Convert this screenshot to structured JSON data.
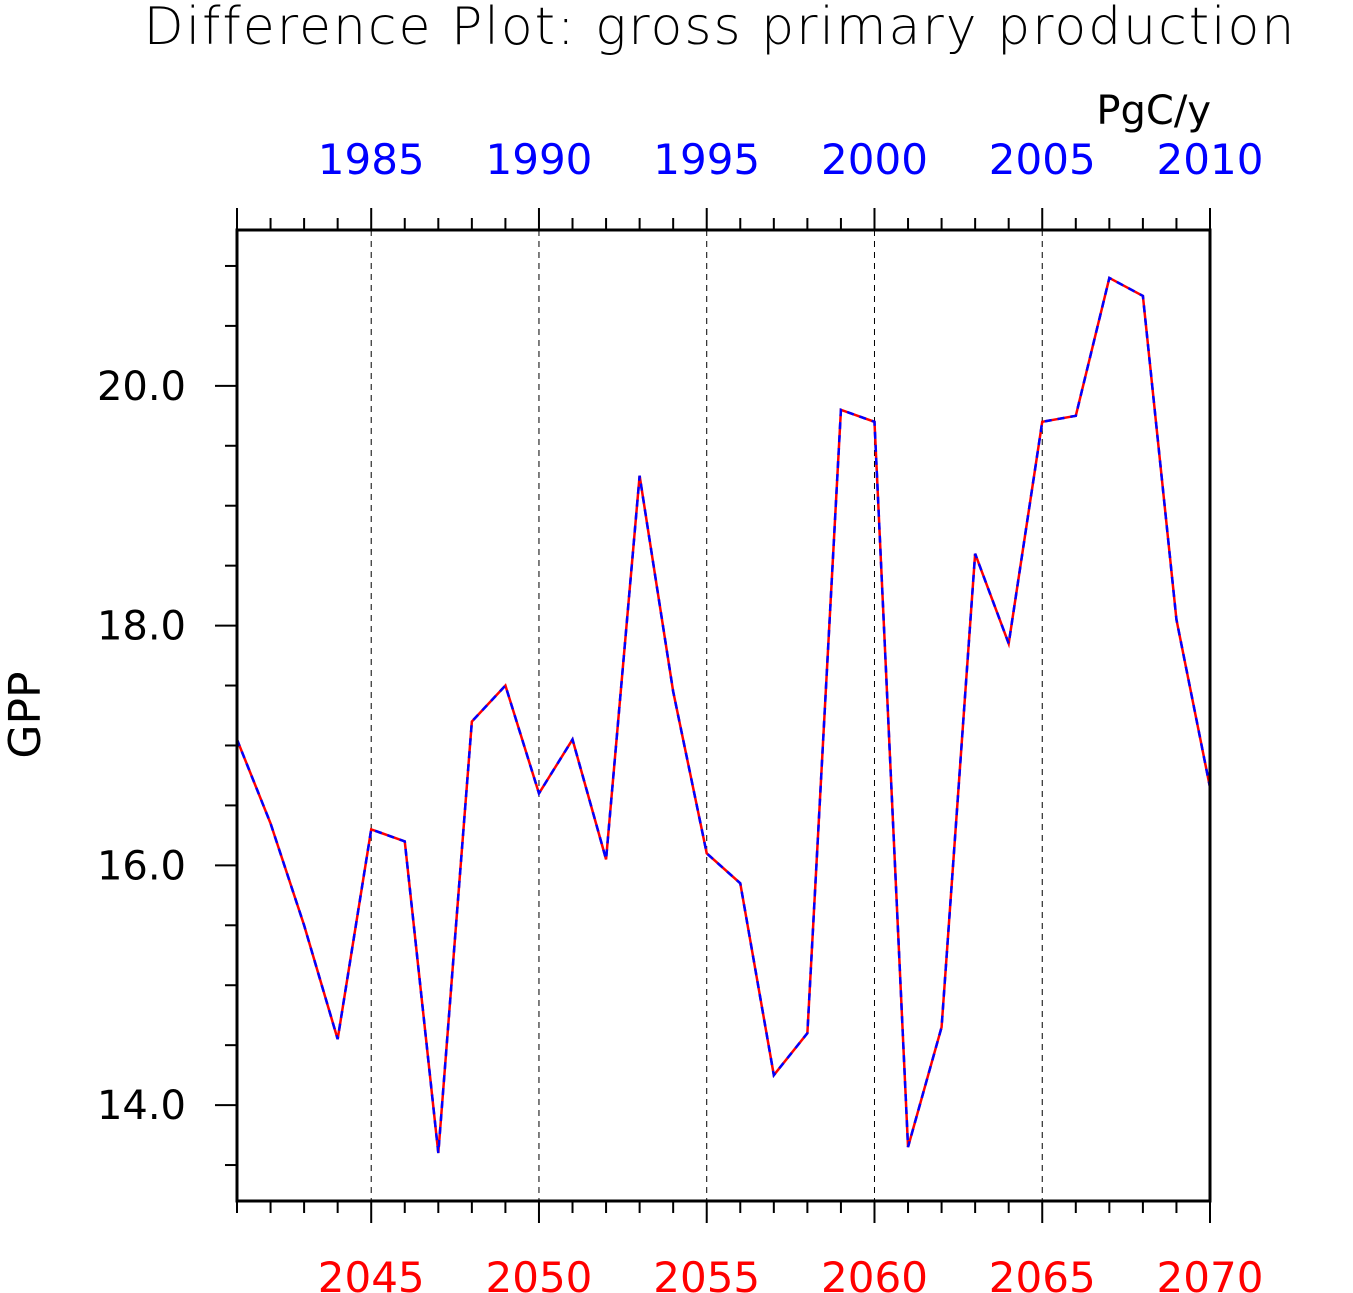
{
  "chart_data": {
    "type": "line",
    "title": "Difference Plot: gross primary production",
    "units": "PgC/y",
    "ylabel": "GPP",
    "ylim": [
      13.2,
      21.3
    ],
    "yticks": [
      14.0,
      16.0,
      18.0,
      20.0
    ],
    "yticklabels": [
      "14.0",
      "16.0",
      "18.0",
      "20.0"
    ],
    "grid": "vertical dashed at bottom-axis major ticks",
    "top_axis": {
      "color": "#0000ff",
      "range": [
        1981,
        2010
      ],
      "ticks": [
        1985,
        1990,
        1995,
        2000,
        2005,
        2010
      ],
      "ticklabels": [
        "1985",
        "1990",
        "1995",
        "2000",
        "2005",
        "2010"
      ]
    },
    "bottom_axis": {
      "color": "#ff0000",
      "range": [
        2041,
        2070
      ],
      "ticks": [
        2045,
        2050,
        2055,
        2060,
        2065,
        2070
      ],
      "ticklabels": [
        "2045",
        "2050",
        "2055",
        "2060",
        "2065",
        "2070"
      ]
    },
    "x": [
      2041,
      2042,
      2043,
      2044,
      2045,
      2046,
      2047,
      2048,
      2049,
      2050,
      2051,
      2052,
      2053,
      2054,
      2055,
      2056,
      2057,
      2058,
      2059,
      2060,
      2061,
      2062,
      2063,
      2064,
      2065,
      2066,
      2067,
      2068,
      2069,
      2070
    ],
    "series": [
      {
        "color": "#ff0000",
        "style": "solid",
        "values": [
          17.05,
          16.35,
          15.5,
          14.55,
          16.3,
          16.2,
          13.6,
          17.2,
          17.5,
          16.6,
          17.05,
          16.05,
          19.25,
          17.45,
          16.1,
          15.85,
          14.25,
          14.6,
          19.8,
          19.7,
          13.65,
          14.65,
          18.6,
          17.85,
          19.7,
          19.75,
          20.9,
          20.75,
          18.05,
          16.65
        ]
      },
      {
        "color": "#0000ff",
        "style": "dashed",
        "values": [
          17.05,
          16.35,
          15.5,
          14.55,
          16.3,
          16.2,
          13.6,
          17.2,
          17.5,
          16.6,
          17.05,
          16.05,
          19.25,
          17.45,
          16.1,
          15.85,
          14.25,
          14.6,
          19.8,
          19.7,
          13.65,
          14.65,
          18.6,
          17.85,
          19.7,
          19.75,
          20.9,
          20.75,
          18.05,
          16.65
        ]
      }
    ]
  }
}
